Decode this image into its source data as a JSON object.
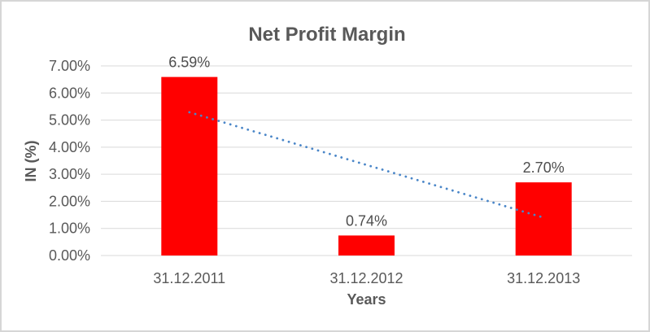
{
  "window": {
    "background_color": "#FFFFFF",
    "border_color": "#D6D6D6"
  },
  "chart_data": {
    "type": "bar",
    "title": "Net Profit Margin",
    "categories": [
      "31.12.2011",
      "31.12.2012",
      "31.12.2013"
    ],
    "values": [
      6.59,
      0.74,
      2.7
    ],
    "data_labels": [
      "6.59%",
      "0.74%",
      "2.70%"
    ],
    "xlabel": "Years",
    "ylabel": "IN (%)",
    "ylim": [
      0,
      7
    ],
    "ytick_step": 1,
    "ytick_labels": [
      "0.00%",
      "1.00%",
      "2.00%",
      "3.00%",
      "4.00%",
      "5.00%",
      "6.00%",
      "7.00%"
    ],
    "grid": true,
    "legend": "none",
    "bar_color": "#FF0000",
    "gridline_color": "#D9D9D9",
    "text_color": "#595959",
    "title_color": "#595959",
    "data_label_color": "#4D4D4D",
    "trendline": {
      "type": "linear",
      "style": "round-dot",
      "color": "#4A86C8",
      "start_value": 5.29,
      "end_value": 1.4
    }
  }
}
